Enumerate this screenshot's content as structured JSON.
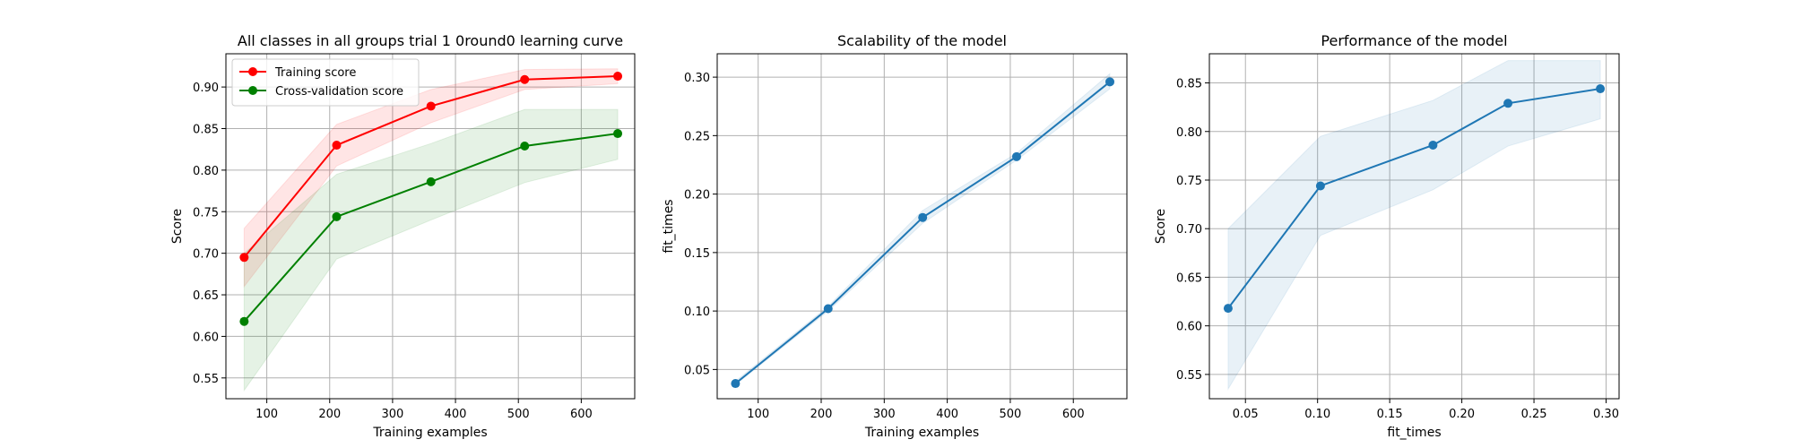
{
  "chart_data": [
    {
      "type": "line",
      "title": "All classes in all groups trial 1 0round0 learning curve",
      "xlabel": "Training examples",
      "ylabel": "Score",
      "xlim": [
        35,
        685
      ],
      "ylim": [
        0.525,
        0.94
      ],
      "xticks": [
        100,
        200,
        300,
        400,
        500,
        600
      ],
      "yticks": [
        0.55,
        0.6,
        0.65,
        0.7,
        0.75,
        0.8,
        0.85,
        0.9
      ],
      "grid": true,
      "legend": "upper-left",
      "x": [
        64,
        211,
        361,
        510,
        658
      ],
      "series": [
        {
          "name": "Training score",
          "color": "#ff0000",
          "values": [
            0.695,
            0.83,
            0.877,
            0.909,
            0.913
          ],
          "band_low": [
            0.66,
            0.805,
            0.857,
            0.897,
            0.904
          ],
          "band_high": [
            0.73,
            0.855,
            0.897,
            0.921,
            0.922
          ]
        },
        {
          "name": "Cross-validation score",
          "color": "#008000",
          "values": [
            0.618,
            0.744,
            0.786,
            0.829,
            0.844
          ],
          "band_low": [
            0.535,
            0.693,
            0.74,
            0.785,
            0.813
          ],
          "band_high": [
            0.7,
            0.795,
            0.832,
            0.873,
            0.873
          ]
        }
      ]
    },
    {
      "type": "line",
      "title": "Scalability of the model",
      "xlabel": "Training examples",
      "ylabel": "fit_times",
      "xlim": [
        35,
        685
      ],
      "ylim": [
        0.025,
        0.32
      ],
      "xticks": [
        100,
        200,
        300,
        400,
        500,
        600
      ],
      "yticks": [
        0.05,
        0.1,
        0.15,
        0.2,
        0.25,
        0.3
      ],
      "grid": true,
      "x": [
        64,
        211,
        361,
        510,
        658
      ],
      "series": [
        {
          "color": "#1f77b4",
          "values": [
            0.038,
            0.102,
            0.18,
            0.232,
            0.296
          ],
          "band_low": [
            0.037,
            0.1,
            0.175,
            0.229,
            0.29
          ],
          "band_high": [
            0.04,
            0.104,
            0.186,
            0.235,
            0.303
          ]
        }
      ]
    },
    {
      "type": "line",
      "title": "Performance of the model",
      "xlabel": "fit_times",
      "ylabel": "Score",
      "xlim": [
        0.025,
        0.309
      ],
      "ylim": [
        0.525,
        0.88
      ],
      "xticks": [
        0.05,
        0.1,
        0.15,
        0.2,
        0.25,
        0.3
      ],
      "yticks": [
        0.55,
        0.6,
        0.65,
        0.7,
        0.75,
        0.8,
        0.85
      ],
      "grid": true,
      "x": [
        0.038,
        0.102,
        0.18,
        0.232,
        0.296
      ],
      "series": [
        {
          "color": "#1f77b4",
          "values": [
            0.618,
            0.744,
            0.786,
            0.829,
            0.844
          ],
          "band_low": [
            0.535,
            0.693,
            0.74,
            0.785,
            0.813
          ],
          "band_high": [
            0.7,
            0.795,
            0.832,
            0.873,
            0.873
          ]
        }
      ]
    }
  ]
}
